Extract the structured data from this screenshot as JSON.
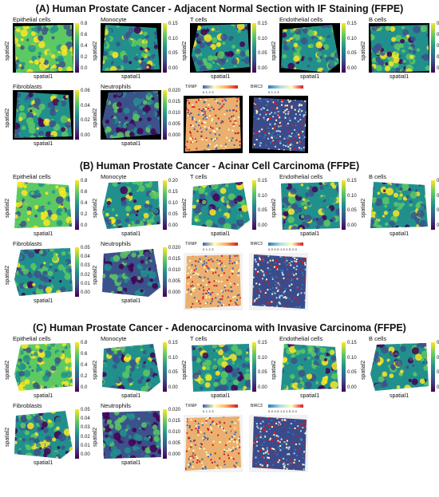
{
  "sections": [
    {
      "id": "A",
      "title": "(A) Human Prostate Cancer - Adjacent Normal Section with IF Staining (FFPE)",
      "bg": "black",
      "panels": [
        {
          "name": "Epithelial cells",
          "ticks": [
            "0.8",
            "0.6",
            "0.4",
            "0.2",
            "0.0"
          ]
        },
        {
          "name": "Monocyte",
          "ticks": [
            "0.15",
            "0.10",
            "0.05",
            "0.00"
          ]
        },
        {
          "name": "T cells",
          "ticks": [
            "0.15",
            "0.10",
            "0.05",
            "0.00"
          ]
        },
        {
          "name": "Endothelial cells",
          "ticks": [
            "0.15",
            "0.10",
            "0.05",
            "0.00"
          ]
        },
        {
          "name": "B cells",
          "ticks": [
            "0.08",
            "0.06",
            "0.04",
            "0.02",
            "0.00"
          ]
        },
        {
          "name": "Fibroblasts",
          "ticks": [
            "0.06",
            "0.04",
            "0.02",
            "0.00"
          ]
        },
        {
          "name": "Neutrophils",
          "ticks": [
            "0.020",
            "0.015",
            "0.010",
            "0.005",
            "0.000"
          ]
        }
      ],
      "genes": [
        {
          "name": "TXNIP",
          "ticks": "0   1   2   3",
          "palette": "warm"
        },
        {
          "name": "BIRC3",
          "ticks": "0   1   2   3",
          "palette": "cool"
        }
      ]
    },
    {
      "id": "B",
      "title": "(B) Human Prostate Cancer - Acinar Cell Carcinoma (FFPE)",
      "bg": "white",
      "panels": [
        {
          "name": "Epithelial cells",
          "ticks": [
            "0.8",
            "0.6",
            "0.4",
            "0.2",
            "0.0"
          ]
        },
        {
          "name": "Monocyte",
          "ticks": [
            "0.20",
            "0.15",
            "0.10",
            "0.05",
            "0.00"
          ]
        },
        {
          "name": "T cells",
          "ticks": [
            "0.15",
            "0.10",
            "0.05",
            "0.00"
          ]
        },
        {
          "name": "Endothelial cells",
          "ticks": [
            "0.15",
            "0.10",
            "0.05",
            "0.00"
          ]
        },
        {
          "name": "B cells",
          "ticks": [
            "0.06",
            "0.04",
            "0.02",
            "0.00"
          ]
        },
        {
          "name": "Fibroblasts",
          "ticks": [
            "0.05",
            "0.04",
            "0.03",
            "0.02",
            "0.01",
            "0.00"
          ]
        },
        {
          "name": "Neutrophils",
          "ticks": [
            "0.020",
            "0.015",
            "0.010",
            "0.005",
            "0.000"
          ]
        }
      ],
      "genes": [
        {
          "name": "TXNIP",
          "ticks": "0   1   2   3",
          "palette": "warm"
        },
        {
          "name": "BIRC3",
          "ticks": "0.0 0.5 1.0 1.5 2.0",
          "palette": "cool"
        }
      ]
    },
    {
      "id": "C",
      "title": "(C) Human Prostate Cancer - Adenocarcinoma with Invasive Carcinoma (FFPE)",
      "bg": "white",
      "panels": [
        {
          "name": "Epithelial cells",
          "ticks": [
            "0.8",
            "0.6",
            "0.4",
            "0.2",
            "0.0"
          ]
        },
        {
          "name": "Monocyte",
          "ticks": [
            "0.15",
            "0.10",
            "0.05",
            "0.00"
          ]
        },
        {
          "name": "T cells",
          "ticks": [
            "0.15",
            "0.10",
            "0.05",
            "0.00"
          ]
        },
        {
          "name": "Endothelial cells",
          "ticks": [
            "0.15",
            "0.10",
            "0.05",
            "0.00"
          ]
        },
        {
          "name": "B cells",
          "ticks": [
            "0.06",
            "0.04",
            "0.02",
            "0.00"
          ]
        },
        {
          "name": "Fibroblasts",
          "ticks": [
            "0.05",
            "0.04",
            "0.03",
            "0.02",
            "0.01",
            "0.00"
          ]
        },
        {
          "name": "Neutrophils",
          "ticks": [
            "0.020",
            "0.015",
            "0.010",
            "0.005",
            "0.000"
          ]
        }
      ],
      "genes": [
        {
          "name": "TXNIP",
          "ticks": "0   1   2   3",
          "palette": "warm"
        },
        {
          "name": "BIRC3",
          "ticks": "0.0 0.5 1.0 1.5 2.0",
          "palette": "cool"
        }
      ]
    }
  ],
  "axis": {
    "x": "spatial1",
    "y": "spatial2"
  },
  "colors": {
    "viridis": [
      "#440154",
      "#3b528b",
      "#21908d",
      "#5dc962",
      "#fde725"
    ],
    "warm": [
      "#3a62b0",
      "#ffffbf",
      "#fdae61",
      "#d7191c"
    ],
    "cool": [
      "#2c7bb6",
      "#abd9e9",
      "#ffffbf",
      "#d7191c"
    ]
  }
}
